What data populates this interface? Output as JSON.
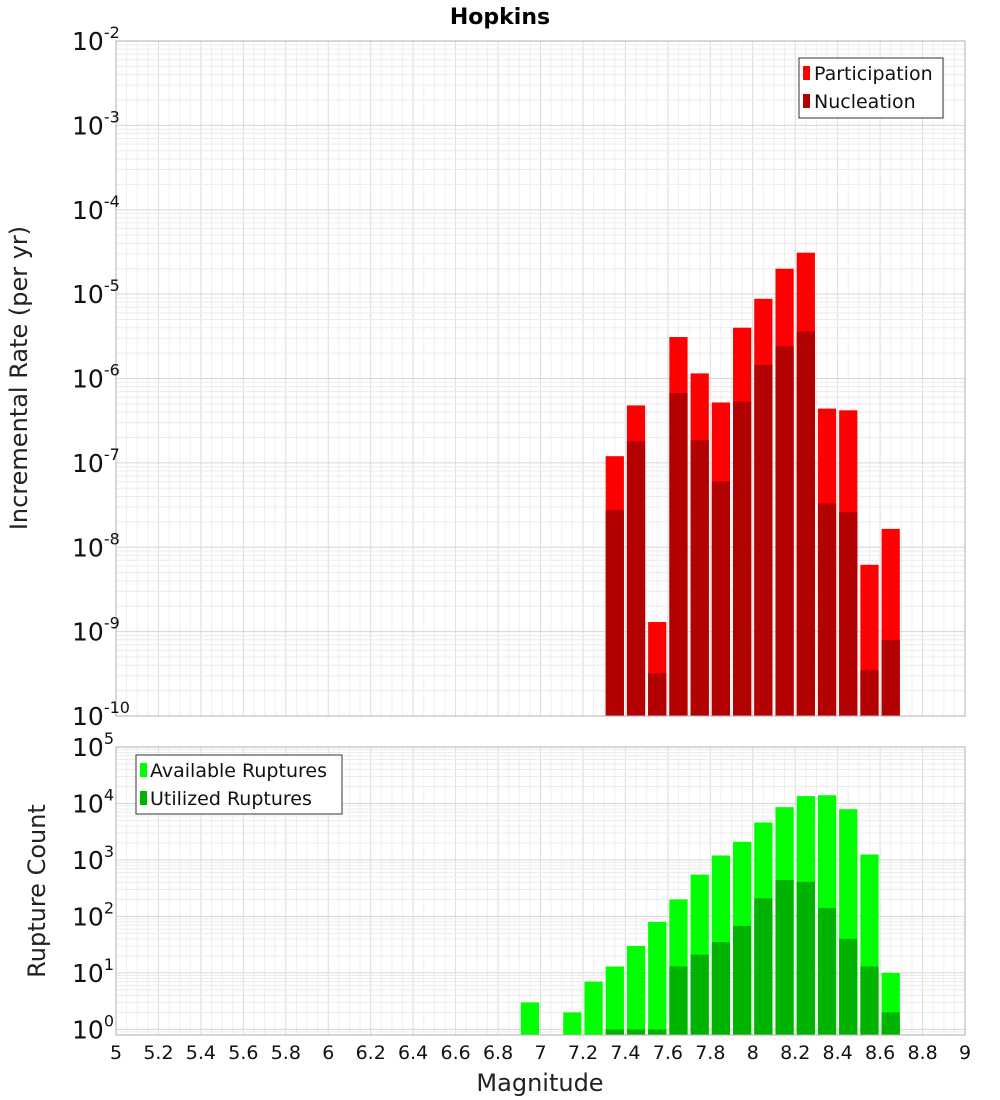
{
  "chart_data": {
    "title": "Hopkins",
    "type": "bar",
    "xlabel": "Magnitude",
    "xlim": [
      5,
      9
    ],
    "x_ticks": [
      5,
      5.2,
      5.4,
      5.6,
      5.8,
      6,
      6.2,
      6.4,
      6.6,
      6.8,
      7,
      7.2,
      7.4,
      7.6,
      7.8,
      8,
      8.2,
      8.4,
      8.6,
      8.8,
      9
    ],
    "x_tick_labels": [
      "5",
      "5.2",
      "5.4",
      "5.6",
      "5.8",
      "6",
      "6.2",
      "6.4",
      "6.6",
      "6.8",
      "7",
      "7.2",
      "7.4",
      "7.6",
      "7.8",
      "8",
      "8.2",
      "8.4",
      "8.6",
      "8.8",
      "9"
    ],
    "panels": [
      {
        "ylabel": "Incremental Rate (per yr)",
        "yscale": "log",
        "ylim_exp": [
          -10,
          -2
        ],
        "y_tick_exps": [
          "-2",
          "-3",
          "-4",
          "-5",
          "-6",
          "-7",
          "-8",
          "-9",
          "-10"
        ],
        "legend_position": "top-right",
        "series": [
          {
            "name": "Participation",
            "color": "#ff0000",
            "x": [
              7.35,
              7.45,
              7.55,
              7.65,
              7.75,
              7.85,
              7.95,
              8.05,
              8.15,
              8.25,
              8.35,
              8.45,
              8.55,
              8.65
            ],
            "values": [
              1.2e-07,
              4.8e-07,
              1.3e-09,
              3.1e-06,
              1.15e-06,
              5.2e-07,
              4e-06,
              8.8e-06,
              2e-05,
              3.1e-05,
              4.4e-07,
              4.2e-07,
              6.2e-09,
              1.65e-08
            ]
          },
          {
            "name": "Nucleation",
            "color": "#b30000",
            "x": [
              7.35,
              7.45,
              7.55,
              7.65,
              7.75,
              7.85,
              7.95,
              8.05,
              8.15,
              8.25,
              8.35,
              8.45,
              8.55,
              8.65
            ],
            "values": [
              2.75e-08,
              1.8e-07,
              3.2e-10,
              6.7e-07,
              1.85e-07,
              6e-08,
              5.3e-07,
              1.45e-06,
              2.4e-06,
              3.6e-06,
              3.3e-08,
              2.6e-08,
              3.5e-10,
              8e-10
            ]
          }
        ]
      },
      {
        "ylabel": "Rupture Count",
        "yscale": "log",
        "ylim_exp": [
          -0.1,
          5
        ],
        "y_tick_exps": [
          "0",
          "1",
          "2",
          "3",
          "4",
          "5"
        ],
        "legend_position": "top-left",
        "series": [
          {
            "name": "Available Ruptures",
            "color": "#00ff00",
            "x": [
              6.95,
              7.15,
              7.25,
              7.35,
              7.45,
              7.55,
              7.65,
              7.75,
              7.85,
              7.95,
              8.05,
              8.15,
              8.25,
              8.35,
              8.45,
              8.55,
              8.65
            ],
            "values": [
              3,
              2,
              7,
              13,
              30,
              80,
              200,
              550,
              1200,
              2100,
              4600,
              8600,
              13500,
              14000,
              7900,
              1250,
              10
            ]
          },
          {
            "name": "Utilized Ruptures",
            "color": "#00b300",
            "x": [
              7.35,
              7.45,
              7.55,
              7.65,
              7.75,
              7.85,
              7.95,
              8.05,
              8.15,
              8.25,
              8.35,
              8.45,
              8.55,
              8.65
            ],
            "values": [
              1,
              1,
              1,
              13,
              21,
              35,
              68,
              210,
              440,
              410,
              140,
              40,
              13,
              2
            ]
          }
        ]
      }
    ]
  }
}
